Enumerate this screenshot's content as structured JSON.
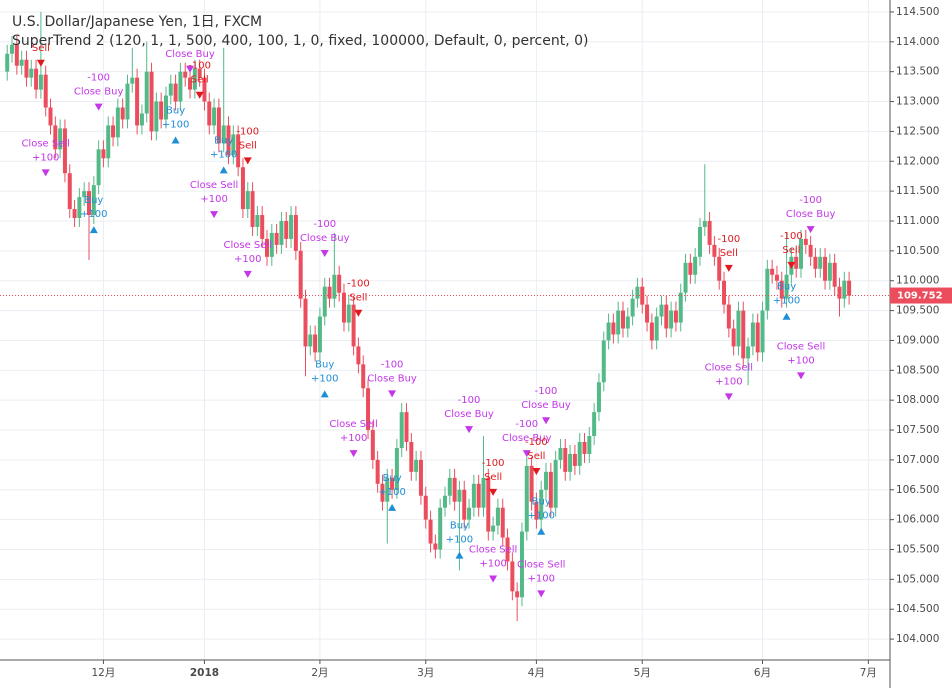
{
  "chart_data": {
    "type": "candlestick",
    "title": "U.S. Dollar/Japanese Yen, 1日, FXCM",
    "subtitle": "SuperTrend 2 (120, 1, 1, 500, 400, 100, 1, 0, fixed, 100000, Default, 0, percent, 0)",
    "up_color": "#53b987",
    "down_color": "#eb4d5c",
    "grid": true,
    "xlim": [
      -1.5,
      183.5
    ],
    "xticks": [
      {
        "value": 20,
        "label": "12月"
      },
      {
        "value": 41,
        "label": "2018"
      },
      {
        "value": 65,
        "label": "2月"
      },
      {
        "value": 87,
        "label": "3月"
      },
      {
        "value": 110,
        "label": "4月"
      },
      {
        "value": 132,
        "label": "5月"
      },
      {
        "value": 157,
        "label": "6月"
      },
      {
        "value": 179,
        "label": "7月"
      }
    ],
    "ylim": [
      103.65,
      114.7
    ],
    "yticks": [
      {
        "value": 104,
        "label": "104.000"
      },
      {
        "value": 104.5,
        "label": "104.500"
      },
      {
        "value": 105,
        "label": "105.000"
      },
      {
        "value": 105.5,
        "label": "105.500"
      },
      {
        "value": 106,
        "label": "106.000"
      },
      {
        "value": 106.5,
        "label": "106.500"
      },
      {
        "value": 107,
        "label": "107.000"
      },
      {
        "value": 107.5,
        "label": "107.500"
      },
      {
        "value": 108,
        "label": "108.000"
      },
      {
        "value": 108.5,
        "label": "108.500"
      },
      {
        "value": 109,
        "label": "109.000"
      },
      {
        "value": 109.5,
        "label": "109.500"
      },
      {
        "value": 110,
        "label": "110.000"
      },
      {
        "value": 110.5,
        "label": "110.500"
      },
      {
        "value": 111,
        "label": "111.000"
      },
      {
        "value": 111.5,
        "label": "111.500"
      },
      {
        "value": 112,
        "label": "112.000"
      },
      {
        "value": 112.5,
        "label": "112.500"
      },
      {
        "value": 113,
        "label": "113.000"
      },
      {
        "value": 113.5,
        "label": "113.500"
      },
      {
        "value": 114,
        "label": "114.000"
      },
      {
        "value": 114.5,
        "label": "114.500"
      }
    ],
    "last_price": 109.752,
    "last_price_color": "#eb4d5c",
    "open": [
      113.5,
      113.8,
      113.95,
      113.6,
      113.7,
      113.4,
      113.55,
      113.2,
      113.45,
      112.9,
      112.6,
      112.2,
      112.55,
      111.8,
      111.2,
      111.05,
      111.4,
      111.5,
      111.1,
      111.6,
      112.2,
      112.05,
      112.6,
      112.4,
      112.9,
      112.7,
      113.3,
      113.4,
      112.6,
      112.8,
      113.5,
      112.5,
      113.0,
      112.7,
      113.1,
      113.3,
      113.0,
      113.5,
      113.4,
      113.2,
      113.55,
      113.4,
      113.0,
      112.6,
      112.9,
      112.3,
      112.6,
      112.1,
      112.45,
      111.9,
      111.2,
      111.5,
      110.9,
      111.1,
      110.7,
      110.4,
      110.8,
      110.6,
      111.0,
      110.7,
      111.1,
      110.5,
      109.7,
      108.9,
      109.1,
      108.8,
      109.4,
      109.9,
      109.7,
      110.1,
      109.8,
      109.3,
      109.6,
      108.9,
      108.6,
      108.2,
      107.5,
      107.0,
      106.6,
      106.3,
      106.7,
      106.5,
      107.2,
      107.8,
      107.3,
      106.8,
      107.0,
      106.4,
      106.0,
      105.6,
      105.5,
      106.2,
      106.4,
      106.7,
      106.3,
      106.5,
      106.0,
      106.2,
      106.6,
      106.2,
      106.7,
      105.8,
      105.9,
      106.2,
      105.7,
      105.3,
      104.8,
      104.7,
      105.8,
      106.9,
      106.3,
      106.0,
      106.5,
      106.8,
      106.2,
      107.0,
      107.2,
      106.8,
      107.1,
      106.9,
      107.3,
      107.1,
      107.4,
      107.8,
      108.3,
      109.0,
      109.3,
      109.1,
      109.5,
      109.2,
      109.4,
      109.7,
      109.9,
      109.6,
      109.3,
      109.0,
      109.4,
      109.6,
      109.2,
      109.5,
      109.3,
      109.8,
      110.3,
      110.1,
      110.4,
      110.9,
      111.0,
      110.6,
      110.4,
      110.0,
      109.6,
      109.2,
      108.9,
      109.5,
      108.7,
      108.9,
      109.3,
      108.8,
      109.5,
      110.2,
      110.1,
      110.0,
      109.7,
      110.1,
      110.4,
      110.2,
      110.7,
      110.6,
      110.4,
      110.2,
      110.4,
      110.0,
      110.3,
      109.9,
      109.7,
      110.0
    ],
    "high": [
      113.95,
      114.1,
      114.1,
      113.85,
      113.85,
      113.7,
      113.7,
      114.5,
      113.6,
      113.05,
      112.75,
      112.7,
      112.7,
      111.95,
      111.35,
      111.55,
      111.65,
      111.65,
      111.75,
      112.35,
      112.35,
      112.75,
      112.75,
      113.05,
      113.05,
      113.45,
      113.9,
      113.55,
      112.95,
      114.0,
      113.65,
      113.15,
      113.15,
      113.25,
      113.45,
      113.45,
      113.65,
      113.65,
      113.55,
      113.7,
      113.7,
      113.55,
      113.15,
      113.05,
      113.05,
      113.9,
      112.75,
      112.6,
      112.6,
      112.05,
      111.65,
      111.65,
      111.25,
      111.25,
      110.85,
      110.95,
      110.95,
      111.15,
      111.15,
      111.25,
      111.25,
      110.65,
      109.85,
      109.25,
      109.25,
      109.55,
      110.05,
      110.05,
      110.8,
      110.25,
      109.95,
      109.75,
      109.75,
      109.05,
      108.75,
      108.35,
      107.65,
      107.15,
      106.75,
      106.85,
      106.85,
      107.35,
      107.95,
      107.95,
      107.45,
      107.15,
      107.15,
      106.55,
      106.15,
      105.75,
      106.35,
      106.55,
      106.85,
      106.85,
      106.65,
      106.65,
      106.35,
      106.75,
      106.75,
      107.4,
      106.85,
      106.05,
      106.35,
      106.35,
      105.85,
      105.45,
      104.95,
      105.95,
      107.05,
      107.05,
      106.45,
      106.65,
      106.95,
      106.95,
      107.15,
      107.35,
      107.35,
      107.25,
      107.25,
      107.45,
      107.45,
      107.55,
      107.95,
      108.45,
      109.15,
      109.45,
      109.45,
      109.65,
      109.65,
      109.55,
      109.85,
      110.05,
      110.05,
      109.75,
      109.45,
      109.55,
      109.75,
      109.75,
      109.65,
      109.65,
      109.95,
      110.45,
      110.45,
      110.55,
      111.05,
      111.95,
      111.15,
      110.75,
      110.55,
      110.15,
      109.75,
      109.35,
      109.65,
      109.65,
      109.05,
      109.45,
      109.45,
      109.65,
      110.35,
      110.35,
      110.25,
      110.15,
      110.8,
      110.55,
      110.55,
      110.85,
      110.85,
      110.75,
      110.55,
      110.55,
      110.55,
      110.45,
      110.45,
      110.05,
      110.15,
      110.15
    ],
    "low": [
      113.35,
      113.65,
      113.45,
      113.45,
      113.25,
      113.25,
      113.05,
      113.05,
      112.75,
      112.45,
      112.05,
      112.05,
      111.65,
      111.05,
      110.9,
      110.9,
      111.25,
      110.35,
      110.95,
      111.45,
      111.9,
      111.9,
      112.25,
      112.25,
      112.55,
      112.55,
      113.15,
      112.45,
      112.45,
      112.65,
      112.35,
      112.35,
      112.55,
      112.55,
      112.95,
      112.85,
      112.85,
      113.25,
      113.05,
      113.05,
      113.25,
      112.85,
      112.45,
      112.45,
      112.15,
      112.15,
      111.95,
      111.95,
      111.75,
      111.05,
      111.05,
      110.75,
      110.75,
      110.55,
      110.25,
      110.25,
      110.45,
      110.45,
      110.55,
      110.55,
      110.35,
      109.55,
      108.4,
      108.75,
      108.65,
      108.65,
      109.25,
      109.55,
      109.55,
      109.65,
      109.15,
      109.15,
      108.75,
      108.45,
      108.05,
      107.35,
      106.85,
      106.45,
      106.15,
      105.6,
      106.35,
      106.35,
      107.05,
      107.15,
      106.65,
      106.65,
      106.25,
      105.85,
      105.45,
      105.35,
      105.35,
      106.05,
      106.25,
      106.15,
      105.15,
      105.85,
      105.85,
      106.05,
      106.05,
      106.05,
      105.65,
      105.65,
      105.75,
      105.55,
      105.15,
      104.65,
      104.3,
      104.55,
      105.65,
      106.15,
      105.85,
      105.85,
      106.35,
      106.05,
      106.05,
      106.85,
      106.65,
      106.65,
      106.75,
      106.75,
      106.95,
      106.95,
      107.25,
      107.65,
      108.15,
      108.85,
      108.95,
      108.95,
      109.05,
      109.05,
      109.25,
      109.55,
      109.45,
      109.15,
      108.85,
      108.85,
      109.25,
      109.05,
      109.05,
      109.15,
      109.15,
      109.65,
      109.95,
      109.95,
      110.25,
      110.75,
      110.45,
      110.25,
      109.85,
      109.45,
      109.05,
      108.75,
      108.75,
      108.55,
      108.25,
      108.75,
      108.65,
      108.65,
      109.35,
      109.95,
      109.85,
      109.55,
      109.55,
      109.95,
      110.05,
      110.05,
      110.45,
      110.25,
      110.05,
      110.05,
      109.85,
      109.85,
      109.75,
      109.4,
      109.55,
      109.6
    ],
    "close": [
      113.8,
      113.95,
      113.6,
      113.7,
      113.4,
      113.55,
      113.2,
      113.45,
      112.9,
      112.6,
      112.2,
      112.55,
      111.8,
      111.2,
      111.05,
      111.4,
      111.5,
      111.1,
      111.6,
      112.2,
      112.05,
      112.6,
      112.4,
      112.9,
      112.7,
      113.3,
      113.4,
      112.6,
      112.8,
      113.5,
      112.5,
      113.0,
      112.7,
      113.1,
      113.3,
      113.0,
      113.5,
      113.4,
      113.2,
      113.55,
      113.4,
      113.0,
      112.6,
      112.9,
      112.3,
      112.6,
      112.1,
      112.45,
      111.9,
      111.2,
      111.5,
      110.9,
      111.1,
      110.7,
      110.4,
      110.8,
      110.6,
      111.0,
      110.7,
      111.1,
      110.5,
      109.7,
      108.9,
      109.1,
      108.8,
      109.4,
      109.9,
      109.7,
      110.1,
      109.8,
      109.3,
      109.6,
      108.9,
      108.6,
      108.2,
      107.5,
      107.0,
      106.6,
      106.3,
      106.7,
      106.5,
      107.2,
      107.8,
      107.3,
      106.8,
      107.0,
      106.4,
      106.0,
      105.6,
      105.5,
      106.2,
      106.4,
      106.7,
      106.3,
      106.5,
      106.0,
      106.2,
      106.6,
      106.2,
      106.7,
      105.8,
      105.9,
      106.2,
      105.7,
      105.3,
      104.8,
      104.7,
      105.8,
      106.9,
      106.3,
      106.0,
      106.5,
      106.8,
      106.2,
      107.0,
      107.2,
      106.8,
      107.1,
      106.9,
      107.3,
      107.1,
      107.4,
      107.8,
      108.3,
      109.0,
      109.3,
      109.1,
      109.5,
      109.2,
      109.4,
      109.7,
      109.9,
      109.6,
      109.3,
      109.0,
      109.4,
      109.6,
      109.2,
      109.5,
      109.3,
      109.8,
      110.3,
      110.1,
      110.4,
      110.9,
      111.0,
      110.6,
      110.4,
      110.0,
      109.6,
      109.2,
      108.9,
      109.5,
      108.7,
      108.9,
      109.3,
      108.8,
      109.5,
      110.2,
      110.1,
      110.0,
      109.7,
      110.1,
      110.4,
      110.2,
      110.7,
      110.6,
      110.4,
      110.2,
      110.4,
      110.0,
      110.3,
      109.9,
      109.7,
      110.0,
      109.75
    ],
    "signal_colors": {
      "sell": "#e0191f",
      "buy": "#1e8ed6",
      "close": "#c436e8"
    },
    "signals": [
      {
        "index": 7,
        "price": 113.9,
        "kind": "sell",
        "texts": [
          "Sell"
        ]
      },
      {
        "index": 19,
        "price": 113.4,
        "kind": "close",
        "texts": [
          "-100",
          "Close Buy"
        ]
      },
      {
        "index": 8,
        "price": 112.3,
        "kind": "close",
        "texts": [
          "Close Sell",
          "+100"
        ]
      },
      {
        "index": 18,
        "price": 111.35,
        "kind": "buy",
        "texts": [
          "Buy",
          "+100"
        ]
      },
      {
        "index": 35,
        "price": 112.85,
        "kind": "buy",
        "texts": [
          "Buy",
          "+100"
        ]
      },
      {
        "index": 38,
        "price": 113.8,
        "kind": "close",
        "texts": [
          "Close Buy"
        ]
      },
      {
        "index": 40,
        "price": 113.6,
        "kind": "sell",
        "texts": [
          "-100",
          "Sell"
        ]
      },
      {
        "index": 43,
        "price": 111.6,
        "kind": "close",
        "texts": [
          "Close Sell",
          "+100"
        ]
      },
      {
        "index": 45,
        "price": 112.35,
        "kind": "buy",
        "texts": [
          "Buy",
          "+100"
        ]
      },
      {
        "index": 50,
        "price": 112.5,
        "kind": "sell",
        "texts": [
          "-100",
          "Sell"
        ]
      },
      {
        "index": 50,
        "price": 110.6,
        "kind": "close",
        "texts": [
          "Close Sell",
          "+100"
        ]
      },
      {
        "index": 66,
        "price": 110.95,
        "kind": "close",
        "texts": [
          "-100",
          "Close Buy"
        ]
      },
      {
        "index": 66,
        "price": 108.6,
        "kind": "buy",
        "texts": [
          "Buy",
          "+100"
        ]
      },
      {
        "index": 73,
        "price": 109.95,
        "kind": "sell",
        "texts": [
          "-100",
          "Sell"
        ]
      },
      {
        "index": 72,
        "price": 107.6,
        "kind": "close",
        "texts": [
          "Close Sell",
          "+100"
        ]
      },
      {
        "index": 80,
        "price": 108.6,
        "kind": "close",
        "texts": [
          "-100",
          "Close Buy"
        ]
      },
      {
        "index": 80,
        "price": 106.7,
        "kind": "buy",
        "texts": [
          "Buy",
          "+100"
        ]
      },
      {
        "index": 96,
        "price": 108.0,
        "kind": "close",
        "texts": [
          "-100",
          "Close Buy"
        ]
      },
      {
        "index": 94,
        "price": 105.9,
        "kind": "buy",
        "texts": [
          "Buy",
          "+100"
        ]
      },
      {
        "index": 101,
        "price": 106.95,
        "kind": "sell",
        "texts": [
          "-100",
          "Sell"
        ]
      },
      {
        "index": 101,
        "price": 105.5,
        "kind": "close",
        "texts": [
          "Close Sell",
          "+100"
        ]
      },
      {
        "index": 108,
        "price": 107.6,
        "kind": "close",
        "texts": [
          "-100",
          "Close Buy"
        ]
      },
      {
        "index": 112,
        "price": 108.15,
        "kind": "close",
        "texts": [
          "-100",
          "Close Buy"
        ]
      },
      {
        "index": 110,
        "price": 107.3,
        "kind": "sell",
        "texts": [
          "-100",
          "Sell"
        ]
      },
      {
        "index": 111,
        "price": 106.3,
        "kind": "buy",
        "texts": [
          "Buy",
          "+100"
        ]
      },
      {
        "index": 111,
        "price": 105.25,
        "kind": "close",
        "texts": [
          "Close Sell",
          "+100"
        ]
      },
      {
        "index": 150,
        "price": 110.7,
        "kind": "sell",
        "texts": [
          "-100",
          "Sell"
        ]
      },
      {
        "index": 150,
        "price": 108.55,
        "kind": "close",
        "texts": [
          "Close Sell",
          "+100"
        ]
      },
      {
        "index": 163,
        "price": 110.75,
        "kind": "sell",
        "texts": [
          "-100",
          "Sell"
        ]
      },
      {
        "index": 162,
        "price": 109.9,
        "kind": "buy",
        "texts": [
          "Buy",
          "+100"
        ]
      },
      {
        "index": 165,
        "price": 108.9,
        "kind": "close",
        "texts": [
          "Close Sell",
          "+100"
        ]
      },
      {
        "index": 167,
        "price": 111.35,
        "kind": "close",
        "texts": [
          "-100",
          "Close Buy"
        ]
      }
    ]
  }
}
